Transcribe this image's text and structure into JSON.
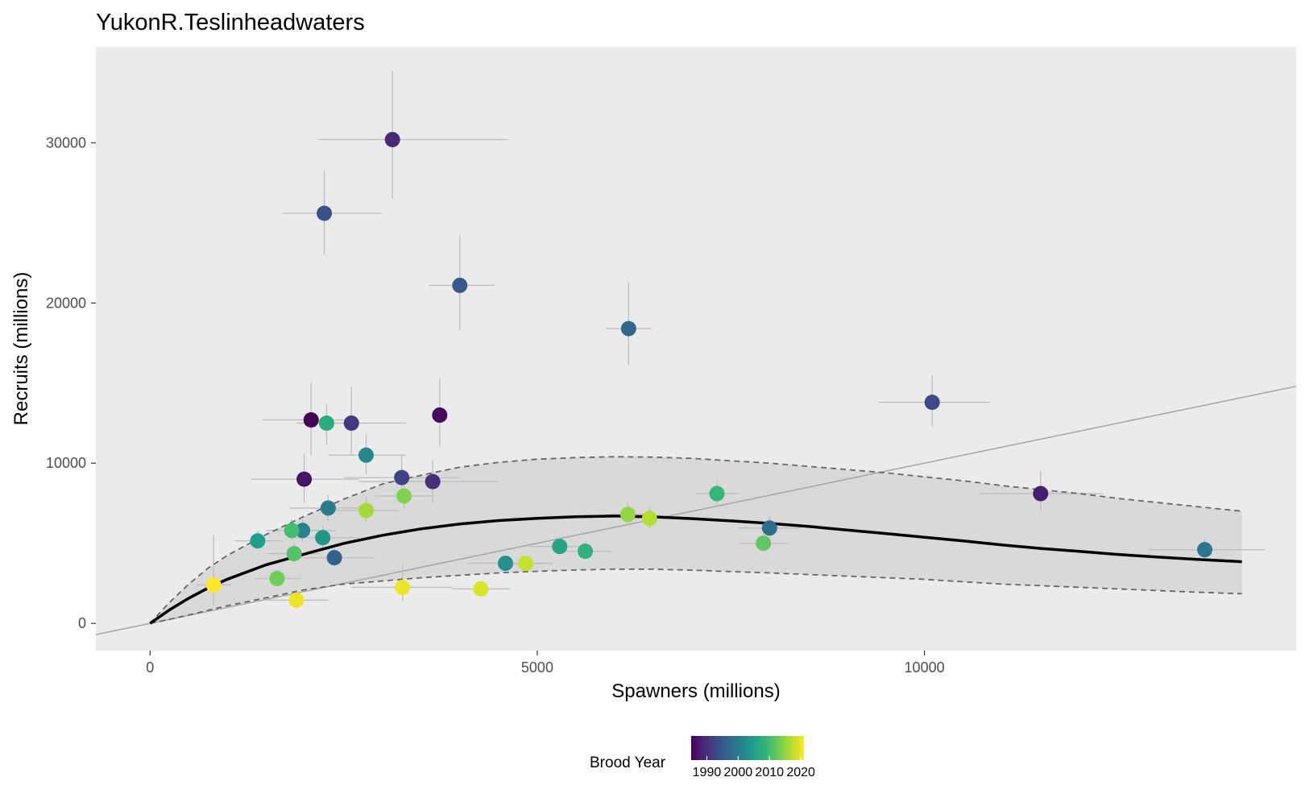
{
  "chart_data": {
    "type": "scatter",
    "title": "YukonR.Teslinheadwaters",
    "xlabel": "Spawners (millions)",
    "ylabel": "Recruits (millions)",
    "xlim": [
      -700,
      14800
    ],
    "ylim": [
      -1700,
      36000
    ],
    "x_ticks": [
      0,
      5000,
      10000
    ],
    "x_tick_labels": [
      "0",
      "5000",
      "10000"
    ],
    "y_ticks": [
      0,
      10000,
      20000,
      30000
    ],
    "y_tick_labels": [
      "0",
      "10000",
      "20000",
      "30000"
    ],
    "grid": false,
    "legend": {
      "title": "Brood Year",
      "position": "bottom",
      "type": "colorbar",
      "range": [
        1985,
        2021
      ],
      "ticks": [
        1990,
        2000,
        2010,
        2020
      ],
      "tick_labels": [
        "1990",
        "2000",
        "2010",
        "2020"
      ]
    },
    "colors": {
      "panel_background": "#ebebeb",
      "fit_line": "#000000",
      "ci_band": "#d9d9d9",
      "ci_line": "#666666",
      "replacement_line": "#a8a8a8",
      "error_bar": "#bdbdbd",
      "viridis": [
        "#440154",
        "#482878",
        "#3e4989",
        "#31688e",
        "#26828e",
        "#1f9e89",
        "#35b779",
        "#6ece58",
        "#b5de2b",
        "#fde725"
      ]
    },
    "fit": {
      "model": "Ricker",
      "x": [
        0,
        250,
        500,
        750,
        1000,
        1500,
        2000,
        2500,
        3000,
        3500,
        4000,
        4500,
        5000,
        5500,
        6000,
        6500,
        7000,
        7500,
        8000,
        8500,
        9000,
        9500,
        10000,
        10500,
        11000,
        11500,
        12000,
        12500,
        13000,
        13500,
        14100
      ],
      "y": [
        0,
        840,
        1570,
        2210,
        2760,
        3660,
        4330,
        4990,
        5500,
        5900,
        6200,
        6420,
        6560,
        6660,
        6700,
        6650,
        6540,
        6400,
        6240,
        6050,
        5830,
        5610,
        5380,
        5150,
        4900,
        4680,
        4500,
        4300,
        4140,
        4000,
        3850
      ]
    },
    "ci_upper": {
      "x": [
        0,
        250,
        500,
        750,
        1000,
        1500,
        2000,
        2500,
        3000,
        3500,
        4000,
        4500,
        5000,
        5500,
        6000,
        6500,
        7000,
        7500,
        8000,
        8500,
        9000,
        9500,
        10000,
        10500,
        11000,
        11500,
        12000,
        12500,
        13000,
        13500,
        14100
      ],
      "y": [
        0,
        1300,
        2450,
        3450,
        4250,
        5550,
        6700,
        7750,
        8700,
        9250,
        9750,
        10050,
        10250,
        10350,
        10400,
        10380,
        10300,
        10150,
        10000,
        9800,
        9600,
        9400,
        9150,
        8900,
        8600,
        8350,
        8100,
        7800,
        7550,
        7300,
        7000
      ]
    },
    "ci_lower": {
      "x": [
        0,
        250,
        500,
        750,
        1000,
        1500,
        2000,
        2500,
        3000,
        3500,
        4000,
        4500,
        5000,
        5500,
        6000,
        6500,
        7000,
        7500,
        8000,
        8500,
        9000,
        9500,
        10000,
        10500,
        11000,
        11500,
        12000,
        12500,
        13000,
        13500,
        14100
      ],
      "y": [
        0,
        250,
        520,
        820,
        1100,
        1600,
        2100,
        2450,
        2650,
        2850,
        3000,
        3150,
        3250,
        3330,
        3380,
        3380,
        3320,
        3230,
        3150,
        3050,
        2950,
        2850,
        2750,
        2600,
        2450,
        2350,
        2250,
        2150,
        2050,
        1950,
        1850
      ]
    },
    "replacement_line": {
      "slope": 1.0
    },
    "points": [
      {
        "year": 1985,
        "x": 2080,
        "y": 12700,
        "xerr": [
          1450,
          2700
        ],
        "yerr": [
          10500,
          15000
        ]
      },
      {
        "year": 1986,
        "x": 3740,
        "y": 13000,
        "xerr": [
          3740,
          3740
        ],
        "yerr": [
          11000,
          15300
        ]
      },
      {
        "year": 1987,
        "x": 1990,
        "y": 9000,
        "xerr": [
          1300,
          2700
        ],
        "yerr": [
          7500,
          10600
        ]
      },
      {
        "year": 1988,
        "x": 11500,
        "y": 8100,
        "xerr": [
          10700,
          12300
        ],
        "yerr": [
          7000,
          9500
        ]
      },
      {
        "year": 1989,
        "x": 3130,
        "y": 30200,
        "xerr": [
          2170,
          4620
        ],
        "yerr": [
          26500,
          34500
        ]
      },
      {
        "year": 1990,
        "x": 3650,
        "y": 8850,
        "xerr": [
          2700,
          4500
        ],
        "yerr": [
          7500,
          10200
        ]
      },
      {
        "year": 1991,
        "x": 2600,
        "y": 12500,
        "xerr": [
          1900,
          3300
        ],
        "yerr": [
          10500,
          14800
        ]
      },
      {
        "year": 1992,
        "x": 3250,
        "y": 9100,
        "xerr": [
          2500,
          4000
        ],
        "yerr": [
          7700,
          10500
        ]
      },
      {
        "year": 1993,
        "x": 10100,
        "y": 13800,
        "xerr": [
          9400,
          10850
        ],
        "yerr": [
          12300,
          15500
        ]
      },
      {
        "year": 1994,
        "x": 2250,
        "y": 25600,
        "xerr": [
          1710,
          2990
        ],
        "yerr": [
          23000,
          28300
        ]
      },
      {
        "year": 1995,
        "x": 4000,
        "y": 21100,
        "xerr": [
          3600,
          4450
        ],
        "yerr": [
          18300,
          24200
        ]
      },
      {
        "year": 1996,
        "x": 2380,
        "y": 4100,
        "xerr": [
          1900,
          2900
        ],
        "yerr": [
          3500,
          4800
        ]
      },
      {
        "year": 1997,
        "x": 6180,
        "y": 18400,
        "xerr": [
          5880,
          6480
        ],
        "yerr": [
          16100,
          21300
        ]
      },
      {
        "year": 1998,
        "x": 8000,
        "y": 5950,
        "xerr": [
          7600,
          8400
        ],
        "yerr": [
          5300,
          6700
        ]
      },
      {
        "year": 1999,
        "x": 13620,
        "y": 4600,
        "xerr": [
          12900,
          14400
        ],
        "yerr": [
          4000,
          5300
        ]
      },
      {
        "year": 2000,
        "x": 2300,
        "y": 7200,
        "xerr": [
          1800,
          2800
        ],
        "yerr": [
          6400,
          8000
        ]
      },
      {
        "year": 2001,
        "x": 1970,
        "y": 5800,
        "xerr": [
          1500,
          2400
        ],
        "yerr": [
          5100,
          6500
        ]
      },
      {
        "year": 2002,
        "x": 2790,
        "y": 10500,
        "xerr": [
          2300,
          3300
        ],
        "yerr": [
          9300,
          11800
        ]
      },
      {
        "year": 2003,
        "x": 4590,
        "y": 3750,
        "xerr": [
          4100,
          5100
        ],
        "yerr": [
          3300,
          4200
        ]
      },
      {
        "year": 2004,
        "x": 2230,
        "y": 5350,
        "xerr": [
          1800,
          2700
        ],
        "yerr": [
          4700,
          6100
        ]
      },
      {
        "year": 2005,
        "x": 1390,
        "y": 5150,
        "xerr": [
          1100,
          1700
        ],
        "yerr": [
          4600,
          5800
        ]
      },
      {
        "year": 2006,
        "x": 5290,
        "y": 4800,
        "xerr": [
          4900,
          5700
        ],
        "yerr": [
          4300,
          5400
        ]
      },
      {
        "year": 2007,
        "x": 2280,
        "y": 12500,
        "xerr": [
          1900,
          2700
        ],
        "yerr": [
          11200,
          13700
        ]
      },
      {
        "year": 2008,
        "x": 5620,
        "y": 4500,
        "xerr": [
          5300,
          5950
        ],
        "yerr": [
          4000,
          5100
        ]
      },
      {
        "year": 2009,
        "x": 7320,
        "y": 8100,
        "xerr": [
          7050,
          7600
        ],
        "yerr": [
          7400,
          8900
        ]
      },
      {
        "year": 2010,
        "x": 1830,
        "y": 5800,
        "xerr": [
          1500,
          2150
        ],
        "yerr": [
          5200,
          6500
        ]
      },
      {
        "year": 2011,
        "x": 1860,
        "y": 4350,
        "xerr": [
          1500,
          2200
        ],
        "yerr": [
          3800,
          5000
        ]
      },
      {
        "year": 2012,
        "x": 7920,
        "y": 5000,
        "xerr": [
          7600,
          8250
        ],
        "yerr": [
          4500,
          5600
        ]
      },
      {
        "year": 2013,
        "x": 1640,
        "y": 2800,
        "xerr": [
          1350,
          1950
        ],
        "yerr": [
          2400,
          3200
        ]
      },
      {
        "year": 2014,
        "x": 3280,
        "y": 7950,
        "xerr": [
          2900,
          3650
        ],
        "yerr": [
          7200,
          8700
        ]
      },
      {
        "year": 2015,
        "x": 6170,
        "y": 6800,
        "xerr": [
          5900,
          6450
        ],
        "yerr": [
          6100,
          7600
        ]
      },
      {
        "year": 2016,
        "x": 2790,
        "y": 7050,
        "xerr": [
          2400,
          3200
        ],
        "yerr": [
          6300,
          7900
        ]
      },
      {
        "year": 2017,
        "x": 6450,
        "y": 6550,
        "xerr": [
          6150,
          6750
        ],
        "yerr": [
          5900,
          7300
        ]
      },
      {
        "year": 2018,
        "x": 4850,
        "y": 3750,
        "xerr": [
          4500,
          5200
        ],
        "yerr": [
          3300,
          4200
        ]
      },
      {
        "year": 2019,
        "x": 4270,
        "y": 2150,
        "xerr": [
          3900,
          4650
        ],
        "yerr": [
          1800,
          2500
        ]
      },
      {
        "year": 2020,
        "x": 1890,
        "y": 1450,
        "xerr": [
          1500,
          2300
        ],
        "yerr": [
          1150,
          1800
        ]
      },
      {
        "year": 2020,
        "x": 3260,
        "y": 2250,
        "xerr": [
          2600,
          3900
        ],
        "yerr": [
          1400,
          3700
        ]
      },
      {
        "year": 2021,
        "x": 820,
        "y": 2400,
        "xerr": [
          600,
          1050
        ],
        "yerr": [
          1100,
          5500
        ]
      }
    ]
  }
}
